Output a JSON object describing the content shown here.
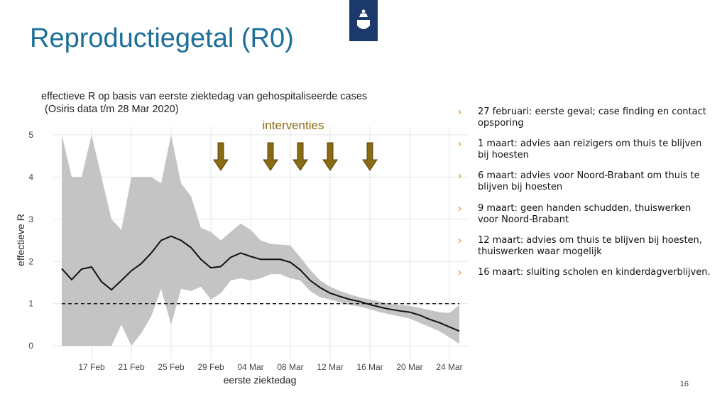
{
  "header": {
    "title": "Reproductiegetal (R0)"
  },
  "chart_data": {
    "type": "line_band",
    "title": "effectieve R op basis van eerste ziektedag van gehospitaliseerde cases",
    "subtitle": "(Osiris data t/m 28 Mar 2020)",
    "x_label": "eerste ziektedag",
    "y_label": "effectieve R",
    "annotation": "interventies",
    "x": [
      "14 Feb",
      "15 Feb",
      "16 Feb",
      "17 Feb",
      "18 Feb",
      "19 Feb",
      "20 Feb",
      "21 Feb",
      "22 Feb",
      "23 Feb",
      "24 Feb",
      "25 Feb",
      "26 Feb",
      "27 Feb",
      "28 Feb",
      "29 Feb",
      "01 Mar",
      "02 Mar",
      "03 Mar",
      "04 Mar",
      "05 Mar",
      "06 Mar",
      "07 Mar",
      "08 Mar",
      "09 Mar",
      "10 Mar",
      "11 Mar",
      "12 Mar",
      "13 Mar",
      "14 Mar",
      "15 Mar",
      "16 Mar",
      "17 Mar",
      "18 Mar",
      "19 Mar",
      "20 Mar",
      "21 Mar",
      "22 Mar",
      "23 Mar",
      "24 Mar",
      "25 Mar"
    ],
    "xticks": [
      "17 Feb",
      "21 Feb",
      "25 Feb",
      "29 Feb",
      "04 Mar",
      "08 Mar",
      "12 Mar",
      "16 Mar",
      "20 Mar",
      "24 Mar"
    ],
    "line": {
      "color": "#111111",
      "values": [
        1.83,
        1.57,
        1.82,
        1.87,
        1.52,
        1.33,
        1.55,
        1.78,
        1.95,
        2.2,
        2.5,
        2.6,
        2.5,
        2.33,
        2.05,
        1.85,
        1.88,
        2.1,
        2.2,
        2.12,
        2.05,
        2.05,
        2.05,
        1.98,
        1.8,
        1.55,
        1.38,
        1.25,
        1.17,
        1.1,
        1.05,
        0.98,
        0.92,
        0.87,
        0.83,
        0.8,
        0.73,
        0.63,
        0.55,
        0.45,
        0.35
      ]
    },
    "band": {
      "color": "#c4c4c4",
      "upper": [
        5.0,
        4.0,
        4.0,
        5.0,
        4.0,
        3.0,
        2.75,
        4.0,
        4.0,
        4.0,
        3.85,
        5.0,
        3.85,
        3.55,
        2.8,
        2.7,
        2.5,
        2.7,
        2.9,
        2.75,
        2.5,
        2.42,
        2.4,
        2.38,
        2.1,
        1.8,
        1.55,
        1.4,
        1.3,
        1.22,
        1.15,
        1.1,
        1.05,
        1.0,
        0.97,
        0.95,
        0.9,
        0.85,
        0.8,
        0.78,
        0.97
      ],
      "lower": [
        0,
        0,
        0,
        0,
        0,
        0,
        0.5,
        0,
        0.3,
        0.7,
        1.35,
        0.5,
        1.35,
        1.3,
        1.4,
        1.1,
        1.25,
        1.55,
        1.6,
        1.55,
        1.6,
        1.7,
        1.7,
        1.6,
        1.55,
        1.3,
        1.15,
        1.1,
        1.03,
        0.97,
        0.93,
        0.87,
        0.8,
        0.75,
        0.7,
        0.65,
        0.55,
        0.45,
        0.35,
        0.2,
        0.05
      ]
    },
    "reference_line": 1,
    "arrows": [
      "01 Mar",
      "06 Mar",
      "09 Mar",
      "12 Mar",
      "16 Mar"
    ],
    "arrow_color": "#8b6a14",
    "ylim": [
      -0.3,
      5.2
    ],
    "yticks": [
      0,
      1,
      2,
      3,
      4,
      5
    ],
    "grid": true
  },
  "bullets": [
    "27 februari: eerste geval; case finding en contact opsporing",
    "1 maart: advies aan reizigers om thuis te blijven bij hoesten",
    "6 maart: advies voor Noord-Brabant om thuis te blijven bij hoesten",
    "9 maart: geen handen schudden, thuiswerken voor Noord-Brabant",
    "12 maart: advies om thuis te blijven bij hoesten, thuiswerken waar mogelijk",
    "16 maart: sluiting scholen en kinderdagverblijven."
  ],
  "page_number": 16
}
